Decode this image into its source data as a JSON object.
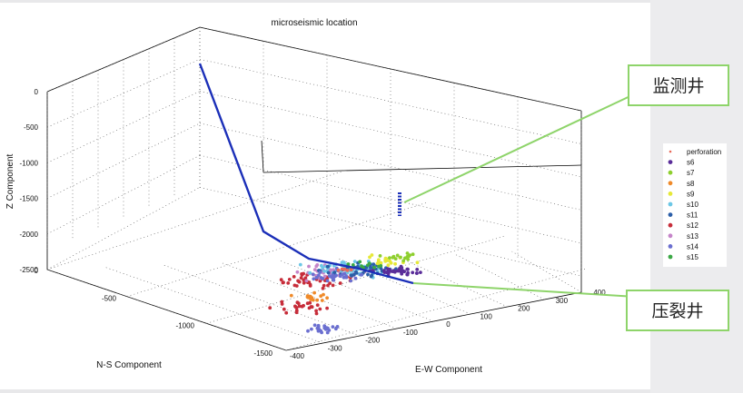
{
  "chart_data": {
    "type": "scatter",
    "title": "microseismic location",
    "xlabel": "E-W Component",
    "ylabel": "N-S Component",
    "zlabel": "Z Component",
    "xlim": [
      -400,
      400
    ],
    "ylim": [
      -1500,
      0
    ],
    "zlim": [
      -2500,
      0
    ],
    "xticks": [
      "-400",
      "-300",
      "-200",
      "-100",
      "0",
      "100",
      "200",
      "300",
      "400"
    ],
    "yticks": [
      "0",
      "-500",
      "-1000",
      "-1500"
    ],
    "zticks": [
      "0",
      "-500",
      "-1000",
      "-1500",
      "-2000",
      "-2500"
    ],
    "legend": [
      "perforation",
      "s6",
      "s7",
      "s8",
      "s9",
      "s10",
      "s11",
      "s12",
      "s13",
      "s14",
      "s15"
    ],
    "legend_position": "right",
    "grid": true,
    "series_colors": {
      "perforation": "#e86a5a",
      "s6": "#5a2d99",
      "s7": "#8ecf2e",
      "s8": "#ef8a2a",
      "s9": "#e6e838",
      "s10": "#6cc7e6",
      "s11": "#2b5ea8",
      "s12": "#c72d3a",
      "s13": "#c585c9",
      "s14": "#6b6fd0",
      "s15": "#3ba845"
    },
    "wells": [
      {
        "name": "monitor-well",
        "color": "#1b2fb8",
        "x": [
          230,
          230
        ],
        "y": [
          -180,
          -180
        ],
        "z": [
          -1700,
          -2100
        ]
      },
      {
        "name": "frac-well",
        "color": "#1b2fb8",
        "x": [
          -400,
          -400,
          100,
          200
        ],
        "y": [
          0,
          -1200,
          -1300,
          -1000
        ],
        "z": [
          0,
          -2400,
          -2550,
          -2600
        ]
      }
    ],
    "clusters": [
      {
        "series": "s14",
        "x": -250,
        "y": -1350,
        "z": -2450,
        "spread": [
          60,
          120,
          40
        ],
        "count": 22
      },
      {
        "series": "s12",
        "x": -200,
        "y": -1000,
        "z": -2400,
        "spread": [
          60,
          150,
          60
        ],
        "count": 25
      },
      {
        "series": "s8",
        "x": -150,
        "y": -900,
        "z": -2350,
        "spread": [
          40,
          120,
          50
        ],
        "count": 15
      },
      {
        "series": "s12",
        "x": -100,
        "y": -700,
        "z": -2250,
        "spread": [
          80,
          200,
          100
        ],
        "count": 45
      },
      {
        "series": "s13",
        "x": -50,
        "y": -600,
        "z": -2200,
        "spread": [
          80,
          200,
          120
        ],
        "count": 40
      },
      {
        "series": "s10",
        "x": 0,
        "y": -550,
        "z": -2200,
        "spread": [
          120,
          220,
          120
        ],
        "count": 60
      },
      {
        "series": "s11",
        "x": 30,
        "y": -500,
        "z": -2250,
        "spread": [
          100,
          200,
          100
        ],
        "count": 45
      },
      {
        "series": "s6",
        "x": 80,
        "y": -450,
        "z": -2300,
        "spread": [
          60,
          150,
          80
        ],
        "count": 35
      },
      {
        "series": "s9",
        "x": 60,
        "y": -450,
        "z": -2150,
        "spread": [
          60,
          150,
          80
        ],
        "count": 20
      },
      {
        "series": "s7",
        "x": 90,
        "y": -400,
        "z": -2100,
        "spread": [
          50,
          120,
          80
        ],
        "count": 15
      },
      {
        "series": "s15",
        "x": 20,
        "y": -500,
        "z": -2180,
        "spread": [
          60,
          120,
          80
        ],
        "count": 12
      },
      {
        "series": "s14",
        "x": -60,
        "y": -650,
        "z": -2220,
        "spread": [
          80,
          200,
          100
        ],
        "count": 30
      },
      {
        "series": "perforation",
        "x": -20,
        "y": -550,
        "z": -2200,
        "spread": [
          20,
          40,
          20
        ],
        "count": 6
      }
    ]
  },
  "annotations": {
    "monitor_well": "监测井",
    "frac_well": "压裂井"
  }
}
